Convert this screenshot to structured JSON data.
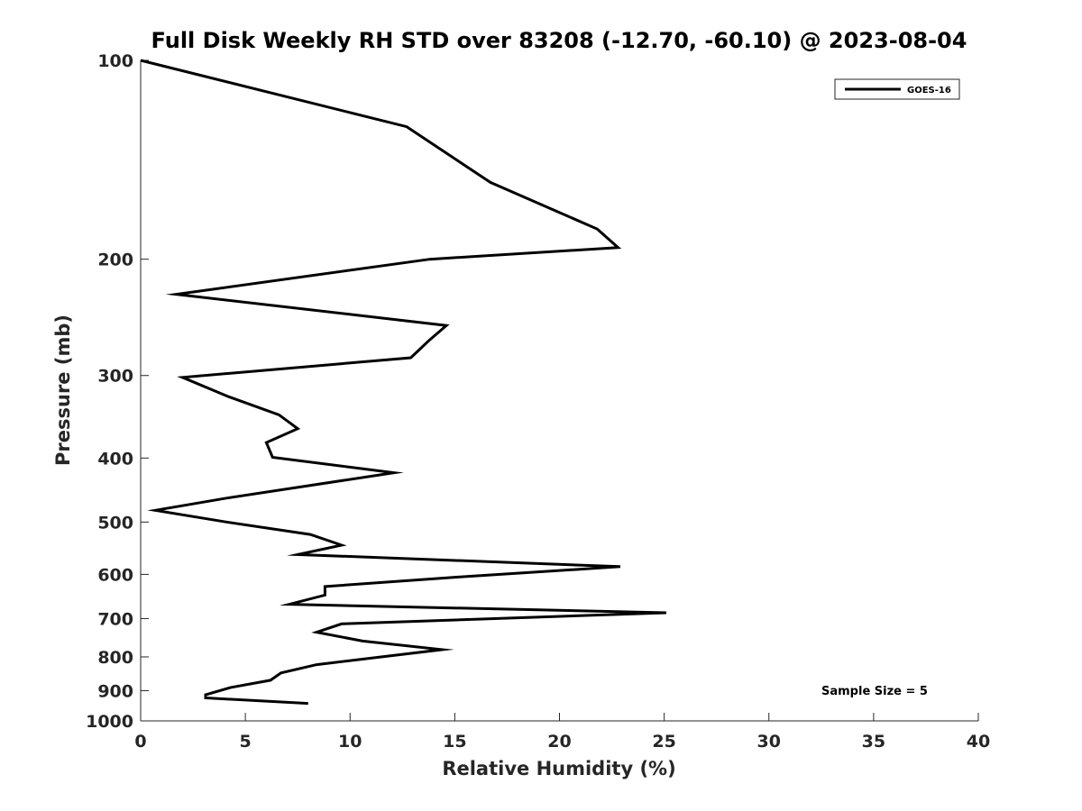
{
  "chart_data": {
    "type": "line",
    "title": "Full Disk Weekly RH STD over 83208 (-12.70, -60.10) @ 2023-08-04",
    "xlabel": "Relative Humidity (%)",
    "ylabel": "Pressure (mb)",
    "xlim": [
      0,
      40
    ],
    "ylim": [
      100,
      1000
    ],
    "y_scale": "log",
    "y_reversed": true,
    "grid": false,
    "legend_position": "top-right",
    "x_ticks": [
      "0",
      "5",
      "10",
      "15",
      "20",
      "25",
      "30",
      "35",
      "40"
    ],
    "y_ticks": [
      "100",
      "200",
      "300",
      "400",
      "500",
      "600",
      "700",
      "800",
      "900",
      "1000"
    ],
    "series": [
      {
        "name": "GOES-16",
        "color": "#000000",
        "points": [
          [
            0.0,
            100
          ],
          [
            12.7,
            126
          ],
          [
            16.7,
            153
          ],
          [
            21.8,
            180
          ],
          [
            22.8,
            192
          ],
          [
            13.8,
            200
          ],
          [
            1.7,
            226
          ],
          [
            14.6,
            252
          ],
          [
            13.8,
            265
          ],
          [
            12.9,
            282
          ],
          [
            2.0,
            302
          ],
          [
            4.2,
            323
          ],
          [
            6.6,
            344
          ],
          [
            7.5,
            361
          ],
          [
            6.0,
            379
          ],
          [
            6.3,
            399
          ],
          [
            12.1,
            421
          ],
          [
            4.1,
            460
          ],
          [
            0.7,
            480
          ],
          [
            4.1,
            500
          ],
          [
            8.1,
            522
          ],
          [
            9.6,
            542
          ],
          [
            7.5,
            560
          ],
          [
            22.9,
            584
          ],
          [
            15.0,
            606
          ],
          [
            8.8,
            626
          ],
          [
            8.8,
            645
          ],
          [
            7.1,
            666
          ],
          [
            25.1,
            686
          ],
          [
            9.6,
            713
          ],
          [
            8.4,
            734
          ],
          [
            10.6,
            757
          ],
          [
            14.4,
            780
          ],
          [
            8.4,
            822
          ],
          [
            6.7,
            846
          ],
          [
            6.2,
            868
          ],
          [
            4.3,
            890
          ],
          [
            3.1,
            913
          ],
          [
            3.1,
            923
          ],
          [
            8.0,
            941
          ]
        ]
      }
    ],
    "annotations": [
      "Sample Size = 5"
    ]
  }
}
